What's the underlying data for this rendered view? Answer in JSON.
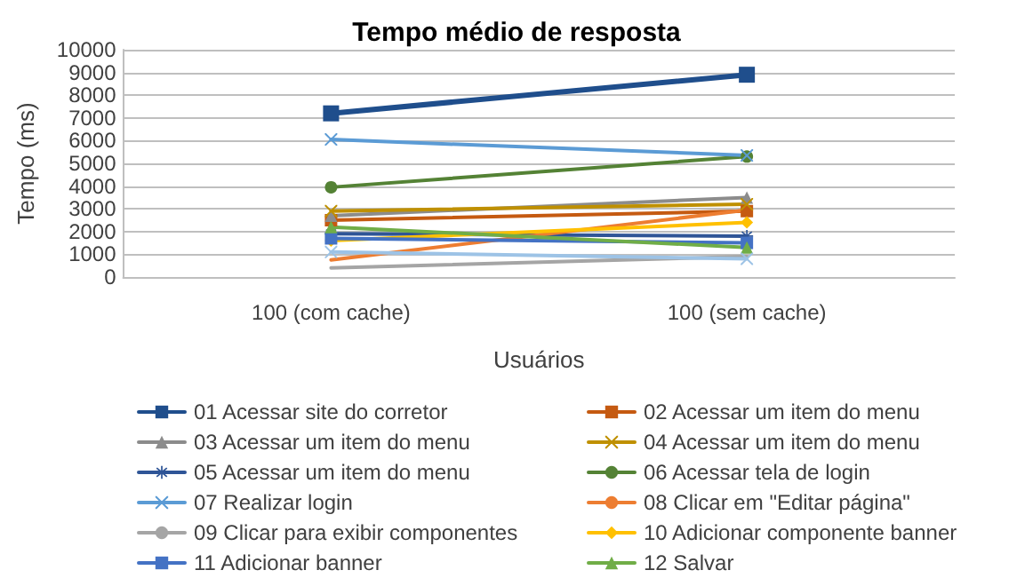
{
  "chart_data": {
    "type": "line",
    "title": "Tempo médio de resposta",
    "xlabel": "Usuários",
    "ylabel": "Tempo (ms)",
    "categories": [
      "100 (com cache)",
      "100 (sem cache)"
    ],
    "ylim": [
      0,
      10000
    ],
    "yticks": [
      0,
      1000,
      2000,
      3000,
      4000,
      5000,
      6000,
      7000,
      8000,
      9000,
      10000
    ],
    "grid": "y",
    "legend": "bottom",
    "series": [
      {
        "name": "01 Acessar site do corretor",
        "color": "#1f4e8c",
        "marker": "square",
        "values": [
          7200,
          8900
        ]
      },
      {
        "name": "02 Acessar um item do menu",
        "color": "#c55a11",
        "marker": "square",
        "values": [
          2500,
          2900
        ]
      },
      {
        "name": "03 Acessar um item do menu",
        "color": "#8c8c8c",
        "marker": "triangle",
        "values": [
          2700,
          3500
        ]
      },
      {
        "name": "04 Acessar um item do menu",
        "color": "#bf9000",
        "marker": "cross",
        "values": [
          2900,
          3200
        ]
      },
      {
        "name": "05 Acessar um item do menu",
        "color": "#2f5597",
        "marker": "star",
        "values": [
          1900,
          1800
        ]
      },
      {
        "name": "06 Acessar tela de login",
        "color": "#548235",
        "marker": "circle",
        "values": [
          3950,
          5300
        ]
      },
      {
        "name": "07 Realizar login",
        "color": "#5b9bd5",
        "marker": "cross",
        "values": [
          6050,
          5350
        ]
      },
      {
        "name": "08 Clicar em \"Editar página\"",
        "color": "#ed7d31",
        "marker": "none",
        "values": [
          750,
          2950
        ]
      },
      {
        "name": "09 Clicar para exibir componentes",
        "color": "#a5a5a5",
        "marker": "none",
        "values": [
          400,
          900
        ]
      },
      {
        "name": "10 Adicionar componente banner",
        "color": "#ffc000",
        "marker": "diamond",
        "values": [
          1600,
          2400
        ]
      },
      {
        "name": "11 Adicionar banner",
        "color": "#4472c4",
        "marker": "square",
        "values": [
          1700,
          1500
        ]
      },
      {
        "name": "12 Salvar",
        "color": "#70ad47",
        "marker": "triangle",
        "values": [
          2200,
          1300
        ]
      },
      {
        "color": "#9dc3e6",
        "marker": "cross",
        "values": [
          1100,
          800
        ]
      }
    ]
  }
}
